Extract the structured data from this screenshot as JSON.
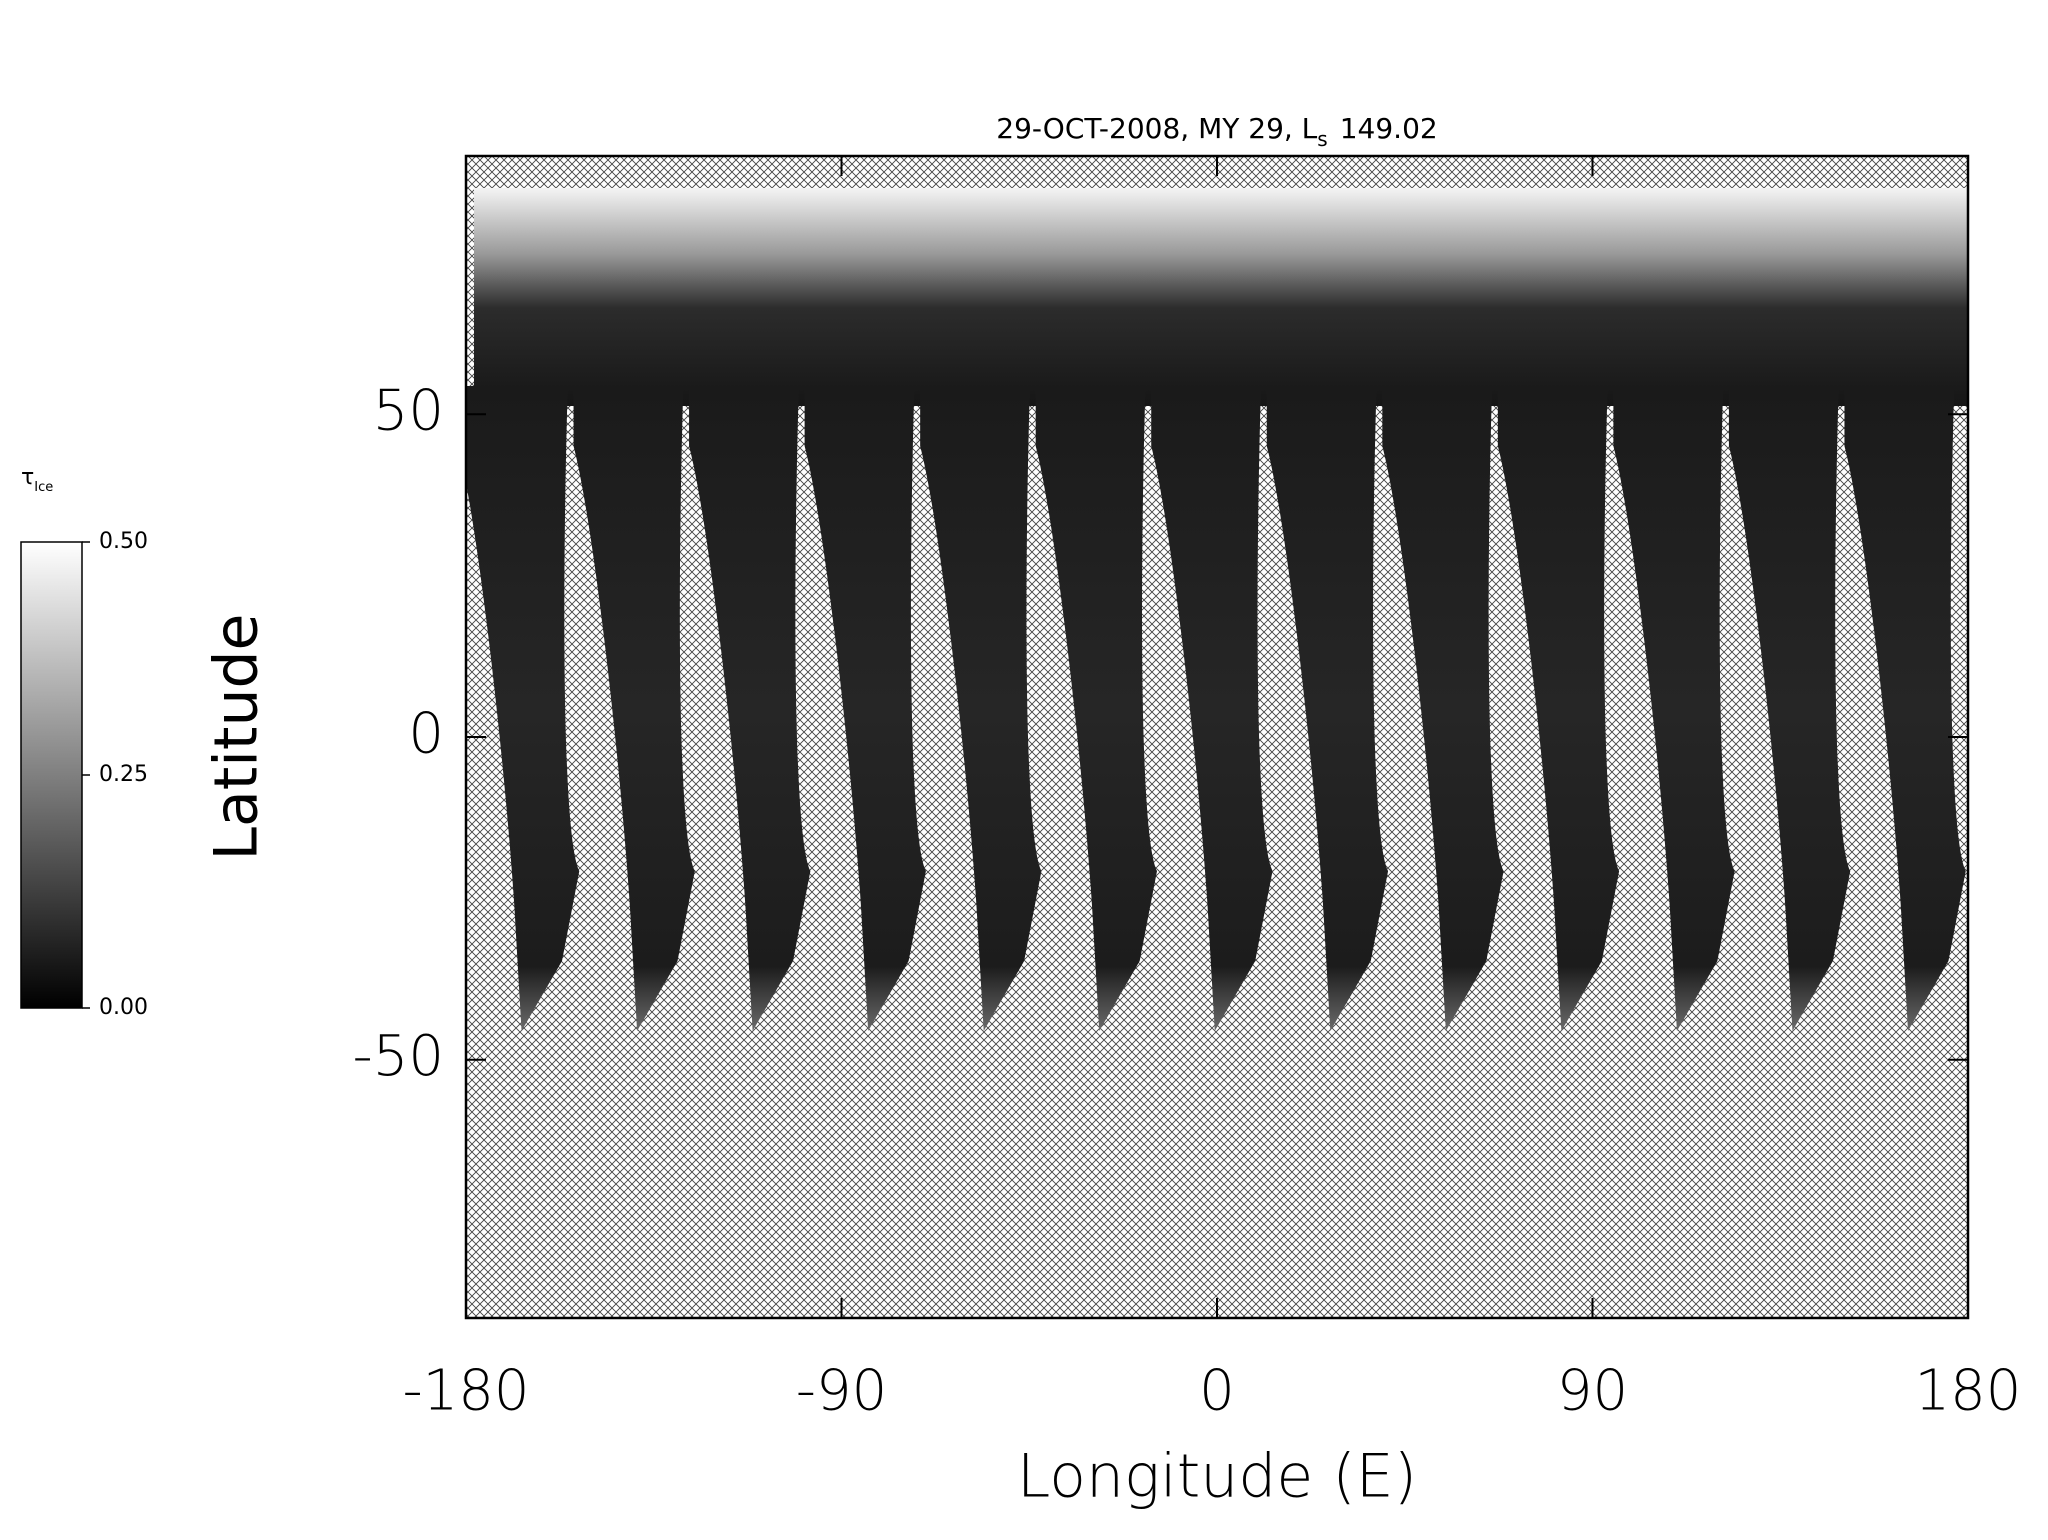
{
  "chart_data": {
    "type": "map",
    "title": "29-OCT-2008, MY 29,  L",
    "title_subscript": "s",
    "title_value": "149.02",
    "xlabel": "Longitude (E)",
    "ylabel": "Latitude",
    "xlim": [
      -180,
      180
    ],
    "xticks": [
      -180,
      -90,
      0,
      90,
      180
    ],
    "ylim": [
      -90,
      90
    ],
    "yticks": [
      -50,
      0,
      50
    ],
    "colorbar": {
      "label": "τ",
      "label_subscript": "Ice",
      "clim": [
        0,
        0.5
      ],
      "ticks": [
        {
          "value": 0,
          "label": "0.00"
        },
        {
          "value": 0.25,
          "label": "0.25"
        },
        {
          "value": 0.5,
          "label": "0.50"
        }
      ],
      "colors": [
        "#000000",
        "#ffffff"
      ]
    }
  }
}
